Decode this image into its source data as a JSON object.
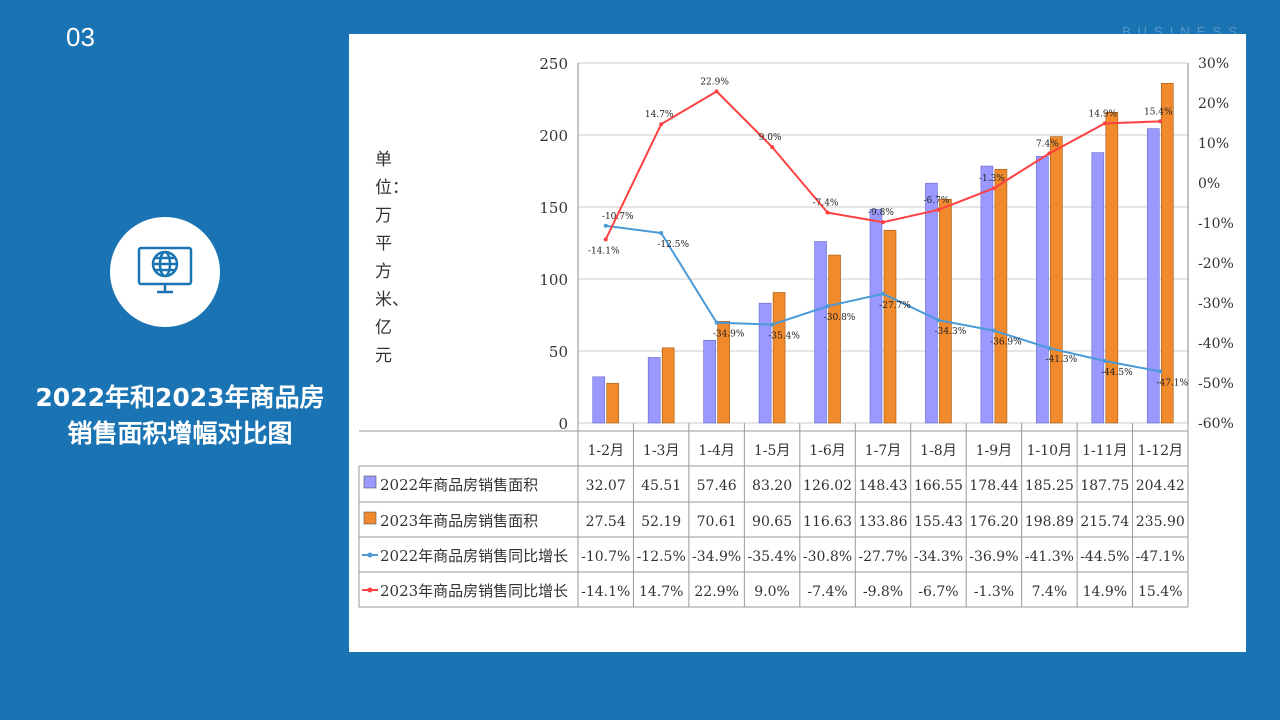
{
  "slide": {
    "number": "03",
    "watermark": "BUSINESS",
    "title_line1": "2022年和2023年商品房",
    "title_line2": "销售面积增幅对比图"
  },
  "colors": {
    "background": "#1a74b4",
    "bar2022": "#9999ff",
    "bar2023": "#f08a2c",
    "line2022": "#4a9ad8",
    "line2023": "#ff4040"
  },
  "chart_data": {
    "type": "bar+line",
    "ylabel": "单位：万平方米、亿元",
    "categories": [
      "1-2月",
      "1-3月",
      "1-4月",
      "1-5月",
      "1-6月",
      "1-7月",
      "1-8月",
      "1-9月",
      "1-10月",
      "1-11月",
      "1-12月"
    ],
    "ylim": [
      0,
      250
    ],
    "y_ticks": [
      "0",
      "50",
      "100",
      "150",
      "200",
      "250"
    ],
    "y2lim": [
      -60,
      30
    ],
    "y2_ticks": [
      "-60%",
      "-50%",
      "-40%",
      "-30%",
      "-20%",
      "-10%",
      "0%",
      "10%",
      "20%",
      "30%"
    ],
    "series": [
      {
        "name": "2022年商品房销售面积",
        "type": "bar",
        "axis": "left",
        "values": [
          32.07,
          45.51,
          57.46,
          83.2,
          126.02,
          148.43,
          166.55,
          178.44,
          185.25,
          187.75,
          204.42
        ],
        "labels": [
          "32.07",
          "45.51",
          "57.46",
          "83.20",
          "126.02",
          "148.43",
          "166.55",
          "178.44",
          "185.25",
          "187.75",
          "204.42"
        ]
      },
      {
        "name": "2023年商品房销售面积",
        "type": "bar",
        "axis": "right",
        "values": [
          27.54,
          52.19,
          70.61,
          90.65,
          116.63,
          133.86,
          155.43,
          176.2,
          198.89,
          215.74,
          235.9
        ],
        "labels": [
          "27.54",
          "52.19",
          "70.61",
          "90.65",
          "116.63",
          "133.86",
          "155.43",
          "176.20",
          "198.89",
          "215.74",
          "235.90"
        ]
      },
      {
        "name": "2022年商品房销售同比增长",
        "type": "line",
        "axis": "right",
        "values": [
          -10.7,
          -12.5,
          -34.9,
          -35.4,
          -30.8,
          -27.7,
          -34.3,
          -36.9,
          -41.3,
          -44.5,
          -47.1
        ],
        "labels": [
          "-10.7%",
          "-12.5%",
          "-34.9%",
          "-35.4%",
          "-30.8%",
          "-27.7%",
          "-34.3%",
          "-36.9%",
          "-41.3%",
          "-44.5%",
          "-47.1%"
        ]
      },
      {
        "name": "2023年商品房销售同比增长",
        "type": "line",
        "axis": "right",
        "values": [
          -14.1,
          14.7,
          22.9,
          9.0,
          -7.4,
          -9.8,
          -6.7,
          -1.3,
          7.4,
          14.9,
          15.4
        ],
        "labels": [
          "-14.1%",
          "14.7%",
          "22.9%",
          "9.0%",
          "-7.4%",
          "-9.8%",
          "-6.7%",
          "-1.3%",
          "7.4%",
          "14.9%",
          "15.4%"
        ]
      }
    ]
  }
}
